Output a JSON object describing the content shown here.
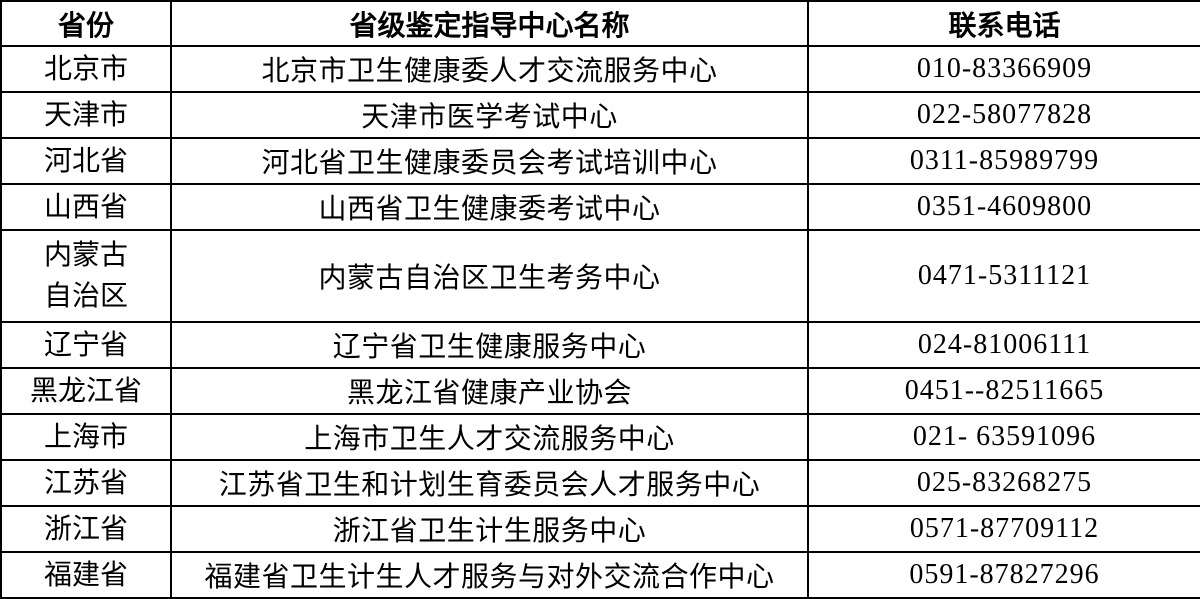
{
  "table": {
    "headers": [
      "省份",
      "省级鉴定指导中心名称",
      "联系电话"
    ],
    "rows": [
      {
        "province": "北京市",
        "center": "北京市卫生健康委人才交流服务中心",
        "phone": "010-83366909",
        "tall": false
      },
      {
        "province": "天津市",
        "center": "天津市医学考试中心",
        "phone": "022-58077828",
        "tall": false
      },
      {
        "province": "河北省",
        "center": "河北省卫生健康委员会考试培训中心",
        "phone": "0311-85989799",
        "tall": false
      },
      {
        "province": "山西省",
        "center": "山西省卫生健康委考试中心",
        "phone": "0351-4609800",
        "tall": false
      },
      {
        "province": "内蒙古\n自治区",
        "center": "内蒙古自治区卫生考务中心",
        "phone": "0471-5311121",
        "tall": true
      },
      {
        "province": "辽宁省",
        "center": "辽宁省卫生健康服务中心",
        "phone": "024-81006111",
        "tall": false
      },
      {
        "province": "黑龙江省",
        "center": "黑龙江省健康产业协会",
        "phone": "0451--82511665",
        "tall": false
      },
      {
        "province": "上海市",
        "center": "上海市卫生人才交流服务中心",
        "phone": "021- 63591096",
        "tall": false
      },
      {
        "province": "江苏省",
        "center": "江苏省卫生和计划生育委员会人才服务中心",
        "phone": "025-83268275",
        "tall": false
      },
      {
        "province": "浙江省",
        "center": "浙江省卫生计生服务中心",
        "phone": "0571-87709112",
        "tall": false
      },
      {
        "province": "福建省",
        "center": "福建省卫生计生人才服务与对外交流合作中心",
        "phone": "0591-87827296",
        "tall": false
      }
    ],
    "colors": {
      "border": "#000000",
      "text": "#000000",
      "background": "#ffffff"
    }
  }
}
